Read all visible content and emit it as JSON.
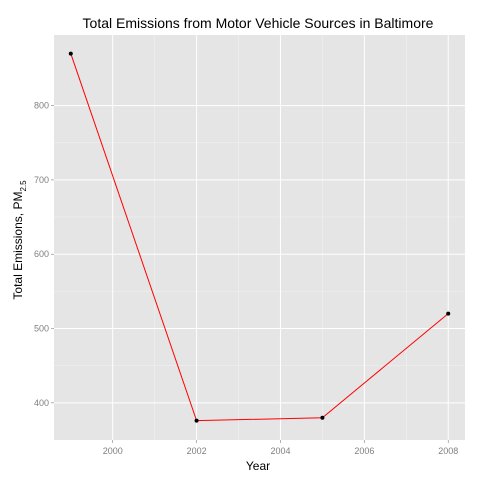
{
  "chart_data": {
    "type": "line",
    "title": "Total Emissions from Motor Vehicle Sources in Baltimore",
    "xlabel": "Year",
    "ylabel_main": "Total Emissions, PM",
    "ylabel_subscript": "2.5",
    "x": [
      1999,
      2002,
      2005,
      2008
    ],
    "y": [
      870,
      376,
      380,
      520
    ],
    "xlim": [
      1998.6,
      2008.4
    ],
    "ylim": [
      350,
      895
    ],
    "x_ticks": [
      2000,
      2002,
      2004,
      2006,
      2008
    ],
    "y_ticks": [
      400,
      500,
      600,
      700,
      800
    ],
    "grid": true,
    "style": {
      "panel_background": "#e5e5e5",
      "grid_major": "#ffffff",
      "grid_minor": "#f2f2f2",
      "line_color": "#ff0000",
      "point_color": "#000000",
      "tick_label_color": "#7f7f7f"
    }
  }
}
